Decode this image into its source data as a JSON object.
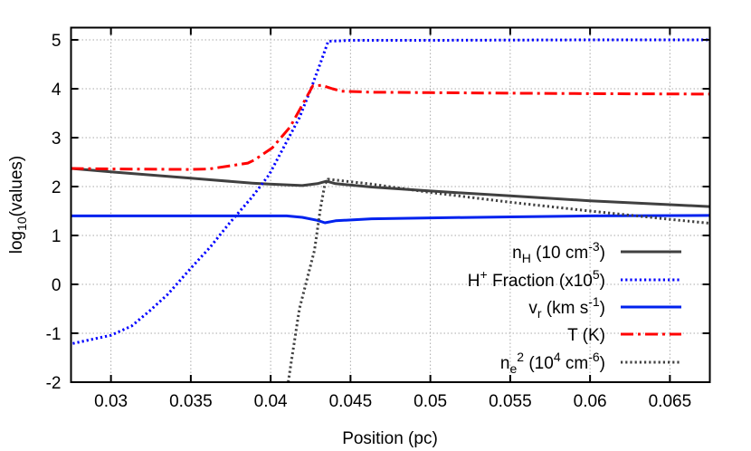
{
  "chart_data": {
    "type": "line",
    "title": "",
    "xlabel": "Position (pc)",
    "ylabel": [
      {
        "t": "log",
        "s": "normal"
      },
      {
        "t": "10",
        "s": "sub"
      },
      {
        "t": "(values)",
        "s": "normal"
      }
    ],
    "xlim": [
      0.0275,
      0.0675
    ],
    "ylim": [
      -2,
      5.25
    ],
    "xticks": [
      0.03,
      0.035,
      0.04,
      0.045,
      0.05,
      0.055,
      0.06,
      0.065
    ],
    "xtick_labels": [
      "0.03",
      "0.035",
      "0.04",
      "0.045",
      "0.05",
      "0.055",
      "0.06",
      "0.065"
    ],
    "yticks": [
      -2,
      -1,
      0,
      1,
      2,
      3,
      4,
      5
    ],
    "ytick_labels": [
      "-2",
      "-1",
      "0",
      "1",
      "2",
      "3",
      "4",
      "5"
    ],
    "grid": true,
    "legend_position": "bottom-right",
    "series": [
      {
        "name": [
          {
            "t": "n",
            "s": "normal"
          },
          {
            "t": "H",
            "s": "sub"
          },
          {
            "t": " (10 cm",
            "s": "normal"
          },
          {
            "t": "-3",
            "s": "sup"
          },
          {
            "t": ")",
            "s": "normal"
          }
        ],
        "color": "#404040",
        "style": "solid",
        "x": [
          0.0275,
          0.03,
          0.035,
          0.03613,
          0.03885,
          0.0399,
          0.04198,
          0.04293,
          0.0435,
          0.04406,
          0.04632,
          0.05,
          0.055,
          0.06,
          0.065,
          0.0675
        ],
        "y": [
          2.37,
          2.3,
          2.17,
          2.14,
          2.07,
          2.05,
          2.02,
          2.06,
          2.11,
          2.06,
          1.99,
          1.91,
          1.81,
          1.71,
          1.63,
          1.59
        ]
      },
      {
        "name": [
          {
            "t": "H",
            "s": "normal"
          },
          {
            "t": "+",
            "s": "sup"
          },
          {
            "t": " Fraction (x10",
            "s": "normal"
          },
          {
            "t": "5",
            "s": "sup"
          },
          {
            "t": ")",
            "s": "normal"
          }
        ],
        "color": "#0000ff",
        "style": "dotted",
        "x": [
          0.02761,
          0.03,
          0.0313,
          0.03243,
          0.03357,
          0.035,
          0.03621,
          0.03734,
          0.03781,
          0.0388,
          0.0399,
          0.0418,
          0.04255,
          0.0432,
          0.0436,
          0.045,
          0.05,
          0.06,
          0.0675
        ],
        "y": [
          -1.21,
          -1.04,
          -0.85,
          -0.54,
          -0.2,
          0.33,
          0.76,
          1.22,
          1.4,
          1.77,
          2.24,
          3.41,
          4.02,
          4.6,
          4.97,
          4.99,
          4.99,
          5.0,
          5.0
        ]
      },
      {
        "name": [
          {
            "t": "v",
            "s": "normal"
          },
          {
            "t": "r",
            "s": "sub"
          },
          {
            "t": " (km s",
            "s": "normal"
          },
          {
            "t": "-1",
            "s": "sup"
          },
          {
            "t": ")",
            "s": "normal"
          }
        ],
        "color": "#0022ee",
        "style": "solid",
        "x": [
          0.0275,
          0.035,
          0.041,
          0.04198,
          0.04293,
          0.0434,
          0.04406,
          0.04632,
          0.05,
          0.055,
          0.06,
          0.0675
        ],
        "y": [
          1.4,
          1.4,
          1.4,
          1.37,
          1.31,
          1.26,
          1.3,
          1.34,
          1.36,
          1.38,
          1.4,
          1.41
        ]
      },
      {
        "name": [
          {
            "t": "T (K)",
            "s": "normal"
          }
        ],
        "color": "#ff0000",
        "style": "dashdot",
        "x": [
          0.0275,
          0.03,
          0.035,
          0.03614,
          0.03857,
          0.03897,
          0.0401,
          0.04122,
          0.04217,
          0.04264,
          0.0432,
          0.04387,
          0.04444,
          0.04632,
          0.05,
          0.055,
          0.06,
          0.0675
        ],
        "y": [
          2.37,
          2.36,
          2.35,
          2.36,
          2.48,
          2.54,
          2.79,
          3.22,
          3.78,
          4.06,
          4.07,
          4.0,
          3.95,
          3.93,
          3.92,
          3.91,
          3.9,
          3.89
        ]
      },
      {
        "name": [
          {
            "t": "n",
            "s": "normal"
          },
          {
            "t": "e",
            "s": "sub"
          },
          {
            "t": "2",
            "s": "sup"
          },
          {
            "t": " (10",
            "s": "normal"
          },
          {
            "t": "4",
            "s": "sup"
          },
          {
            "t": " cm",
            "s": "normal"
          },
          {
            "t": "-6",
            "s": "sup"
          },
          {
            "t": ")",
            "s": "normal"
          }
        ],
        "color": "#404040",
        "style": "dotted",
        "x": [
          0.0411,
          0.0418,
          0.04274,
          0.04312,
          0.0434,
          0.04359,
          0.04632,
          0.05,
          0.055,
          0.06,
          0.065,
          0.0675
        ],
        "y": [
          -2.0,
          -0.5,
          0.69,
          1.56,
          2.05,
          2.15,
          2.05,
          1.88,
          1.68,
          1.5,
          1.33,
          1.25
        ]
      }
    ]
  }
}
